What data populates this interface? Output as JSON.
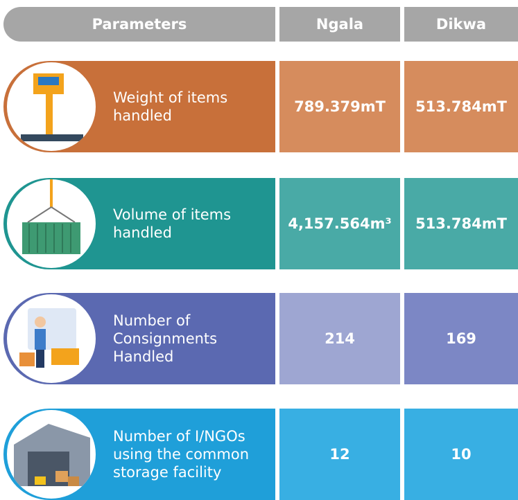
{
  "table": {
    "header": [
      "Parameters",
      "Ngala",
      "Dikwa"
    ],
    "rows": [
      [
        "Weight of items handled",
        "789.379mT",
        "513.784mT"
      ],
      [
        "Volume of items handled",
        "4,157.564m³",
        "513.784mT"
      ],
      [
        "Number of Consignments Handled",
        "214",
        "169"
      ],
      [
        "Number of I/NGOs using the common storage facility",
        "12",
        "10"
      ]
    ]
  }
}
